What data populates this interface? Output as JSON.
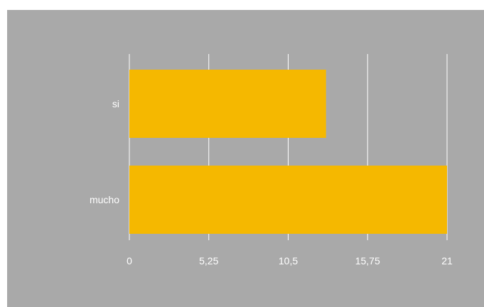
{
  "chart_data": {
    "type": "bar",
    "orientation": "horizontal",
    "categories": [
      "si",
      "mucho"
    ],
    "values": [
      13,
      21
    ],
    "xlim": [
      0,
      21
    ],
    "ticks": [
      0,
      5.25,
      10.5,
      15.75,
      21
    ],
    "tick_labels": [
      "0",
      "5,25",
      "10,5",
      "15,75",
      "21"
    ],
    "title": "",
    "xlabel": "",
    "ylabel": "",
    "grid": "vertical",
    "legend": "none"
  },
  "colors": {
    "bar": "#f5b800",
    "background": "#a9a9a9",
    "gridline": "#ffffff",
    "text": "#ffffff"
  }
}
